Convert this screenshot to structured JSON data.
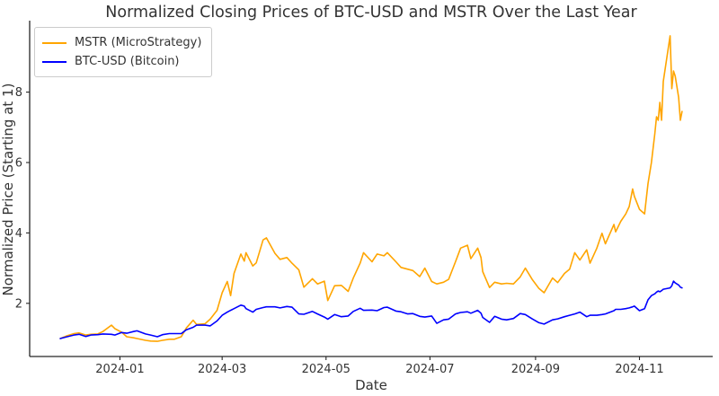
{
  "title": "Normalized Closing Prices of BTC-USD and MSTR Over the Last Year",
  "chart_data": {
    "type": "line",
    "title": "Normalized Closing Prices of BTC-USD and MSTR Over the Last Year",
    "xlabel": "Date",
    "ylabel": "Normalized Price (Starting at 1)",
    "x_tick_labels": [
      "2024-01",
      "2024-03",
      "2024-05",
      "2024-07",
      "2024-09",
      "2024-11"
    ],
    "y_ticks": [
      2,
      4,
      6,
      8
    ],
    "xlim": [
      "2023-11-09",
      "2024-12-14"
    ],
    "ylim": [
      0.49,
      10.03
    ],
    "grid": false,
    "legend_position": "upper-left",
    "background": "#ffffff",
    "spine_color": "#262626",
    "x": [
      "2023-11-27",
      "2023-12-01",
      "2023-12-05",
      "2023-12-08",
      "2023-12-12",
      "2023-12-15",
      "2023-12-19",
      "2023-12-22",
      "2023-12-27",
      "2023-12-29",
      "2024-01-02",
      "2024-01-05",
      "2024-01-09",
      "2024-01-11",
      "2024-01-16",
      "2024-01-19",
      "2024-01-23",
      "2024-01-26",
      "2024-01-30",
      "2024-02-02",
      "2024-02-06",
      "2024-02-09",
      "2024-02-13",
      "2024-02-15",
      "2024-02-20",
      "2024-02-23",
      "2024-02-27",
      "2024-03-01",
      "2024-03-04",
      "2024-03-06",
      "2024-03-08",
      "2024-03-12",
      "2024-03-14",
      "2024-03-15",
      "2024-03-19",
      "2024-03-21",
      "2024-03-25",
      "2024-03-27",
      "2024-04-01",
      "2024-04-04",
      "2024-04-08",
      "2024-04-11",
      "2024-04-15",
      "2024-04-18",
      "2024-04-23",
      "2024-04-26",
      "2024-04-30",
      "2024-05-02",
      "2024-05-06",
      "2024-05-10",
      "2024-05-14",
      "2024-05-17",
      "2024-05-21",
      "2024-05-23",
      "2024-05-28",
      "2024-05-31",
      "2024-06-04",
      "2024-06-06",
      "2024-06-11",
      "2024-06-14",
      "2024-06-18",
      "2024-06-21",
      "2024-06-25",
      "2024-06-28",
      "2024-07-02",
      "2024-07-05",
      "2024-07-09",
      "2024-07-12",
      "2024-07-16",
      "2024-07-19",
      "2024-07-23",
      "2024-07-25",
      "2024-07-29",
      "2024-07-31",
      "2024-08-01",
      "2024-08-05",
      "2024-08-08",
      "2024-08-12",
      "2024-08-15",
      "2024-08-19",
      "2024-08-23",
      "2024-08-26",
      "2024-08-30",
      "2024-09-03",
      "2024-09-06",
      "2024-09-11",
      "2024-09-14",
      "2024-09-18",
      "2024-09-21",
      "2024-09-24",
      "2024-09-27",
      "2024-10-01",
      "2024-10-03",
      "2024-10-07",
      "2024-10-10",
      "2024-10-12",
      "2024-10-17",
      "2024-10-18",
      "2024-10-21",
      "2024-10-24",
      "2024-10-26",
      "2024-10-28",
      "2024-10-29",
      "2024-11-01",
      "2024-11-04",
      "2024-11-06",
      "2024-11-08",
      "2024-11-10",
      "2024-11-11",
      "2024-11-12",
      "2024-11-13",
      "2024-11-14",
      "2024-11-15",
      "2024-11-19",
      "2024-11-20",
      "2024-11-21",
      "2024-11-22",
      "2024-11-24",
      "2024-11-25",
      "2024-11-26"
    ],
    "series": [
      {
        "name": "MSTR (MicroStrategy)",
        "color": "#FFA500",
        "values": [
          1.0,
          1.08,
          1.14,
          1.16,
          1.1,
          1.12,
          1.13,
          1.2,
          1.38,
          1.28,
          1.18,
          1.05,
          1.02,
          1.0,
          0.95,
          0.93,
          0.92,
          0.95,
          0.98,
          0.98,
          1.05,
          1.3,
          1.52,
          1.4,
          1.42,
          1.55,
          1.8,
          2.3,
          2.62,
          2.22,
          2.85,
          3.4,
          3.2,
          3.44,
          3.06,
          3.15,
          3.8,
          3.86,
          3.42,
          3.25,
          3.3,
          3.14,
          2.95,
          2.46,
          2.7,
          2.55,
          2.63,
          2.08,
          2.5,
          2.51,
          2.34,
          2.72,
          3.14,
          3.44,
          3.18,
          3.4,
          3.35,
          3.44,
          3.18,
          3.02,
          2.97,
          2.93,
          2.76,
          3.0,
          2.62,
          2.55,
          2.6,
          2.68,
          3.18,
          3.57,
          3.65,
          3.27,
          3.57,
          3.3,
          2.9,
          2.45,
          2.6,
          2.55,
          2.57,
          2.55,
          2.75,
          3.0,
          2.68,
          2.42,
          2.3,
          2.72,
          2.59,
          2.85,
          2.97,
          3.44,
          3.23,
          3.52,
          3.14,
          3.57,
          3.99,
          3.69,
          4.24,
          4.03,
          4.33,
          4.54,
          4.75,
          5.25,
          5.04,
          4.67,
          4.54,
          5.4,
          6.0,
          6.82,
          7.3,
          7.2,
          7.71,
          7.2,
          8.3,
          9.6,
          8.1,
          8.6,
          8.45,
          7.85,
          7.2,
          7.45
        ]
      },
      {
        "name": "BTC-USD (Bitcoin)",
        "color": "#0000FF",
        "values": [
          1.0,
          1.05,
          1.1,
          1.12,
          1.06,
          1.1,
          1.11,
          1.13,
          1.12,
          1.1,
          1.17,
          1.15,
          1.2,
          1.22,
          1.13,
          1.1,
          1.05,
          1.11,
          1.14,
          1.14,
          1.14,
          1.25,
          1.32,
          1.38,
          1.38,
          1.36,
          1.5,
          1.66,
          1.75,
          1.8,
          1.85,
          1.95,
          1.92,
          1.85,
          1.75,
          1.83,
          1.88,
          1.9,
          1.9,
          1.87,
          1.91,
          1.89,
          1.7,
          1.69,
          1.77,
          1.7,
          1.61,
          1.55,
          1.68,
          1.62,
          1.64,
          1.77,
          1.86,
          1.8,
          1.81,
          1.79,
          1.88,
          1.89,
          1.78,
          1.76,
          1.7,
          1.71,
          1.63,
          1.61,
          1.64,
          1.43,
          1.53,
          1.55,
          1.7,
          1.74,
          1.76,
          1.72,
          1.8,
          1.72,
          1.6,
          1.46,
          1.63,
          1.55,
          1.53,
          1.57,
          1.71,
          1.68,
          1.56,
          1.45,
          1.41,
          1.53,
          1.56,
          1.62,
          1.66,
          1.7,
          1.75,
          1.62,
          1.66,
          1.66,
          1.68,
          1.7,
          1.79,
          1.83,
          1.83,
          1.85,
          1.87,
          1.9,
          1.92,
          1.79,
          1.85,
          2.1,
          2.22,
          2.27,
          2.32,
          2.35,
          2.33,
          2.36,
          2.4,
          2.44,
          2.5,
          2.63,
          2.58,
          2.52,
          2.46,
          2.44
        ]
      }
    ]
  }
}
